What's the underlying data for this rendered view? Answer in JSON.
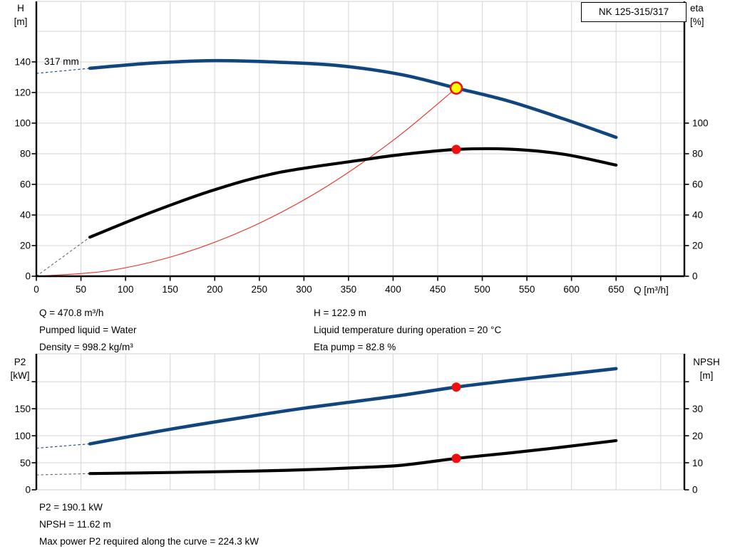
{
  "header": {
    "model": "NK 125-315/317"
  },
  "labels": {
    "impeller": "317 mm",
    "h_axis": {
      "line1": "H",
      "line2": "[m]"
    },
    "eta_axis": {
      "line1": "eta",
      "line2": "[%]"
    },
    "q_axis": "Q [m³/h]",
    "p2_axis": {
      "line1": "P2",
      "line2": "[kW]"
    },
    "npsh_axis": {
      "line1": "NPSH",
      "line2": "[m]"
    }
  },
  "annotations": {
    "duty_left": [
      "Q = 470.8 m³/h",
      "Pumped liquid = Water",
      "Density = 998.2 kg/m³"
    ],
    "duty_right": [
      "H = 122.9 m",
      "Liquid temperature during operation = 20 °C",
      "Eta pump = 82.8 %"
    ],
    "power_block": [
      "P2 = 190.1 kW",
      "NPSH = 11.62 m",
      "Max power P2 required along the curve = 224.3 kW"
    ]
  },
  "colors": {
    "curve_blue": "#10467e",
    "curve_black": "#000000",
    "system_red": "#ee2e24",
    "marker_red": "#f10e0e",
    "marker_yellow": "#ffff00",
    "grid": "#d9d9d9",
    "axis": "#000000",
    "dash_gray": "#666666"
  },
  "chart_data": [
    {
      "type": "line",
      "title": "NK 125-315/317",
      "xlabel": "Q [m³/h]",
      "x_range": [
        0,
        726
      ],
      "x_ticks_labeled": [
        0,
        50,
        100,
        150,
        200,
        250,
        300,
        350,
        400,
        450,
        500,
        550,
        600,
        650
      ],
      "x_ticks_unlabeled": [
        700
      ],
      "left_ylabel": "H [m]",
      "left_range": [
        0,
        179.5
      ],
      "left_ticks": [
        0,
        20,
        40,
        60,
        80,
        100,
        120,
        140
      ],
      "left_grid": [
        20,
        40,
        60,
        80,
        100,
        120,
        140,
        160
      ],
      "right_ylabel": "eta [%]",
      "right_range": [
        0,
        179.5
      ],
      "right_ticks": [
        0,
        20,
        40,
        60,
        80,
        100
      ],
      "grid_x": [
        50,
        100,
        150,
        200,
        250,
        300,
        350,
        400,
        450,
        500,
        550,
        600,
        650,
        700
      ],
      "series": [
        {
          "name": "system-curve",
          "axis": "left",
          "role": "system",
          "points": [
            [
              0,
              0
            ],
            [
              80,
              3.55
            ],
            [
              160,
              14.2
            ],
            [
              240,
              31.9
            ],
            [
              320,
              56.7
            ],
            [
              400,
              88.7
            ],
            [
              470.8,
              122.9
            ]
          ]
        },
        {
          "name": "head-curve-317mm",
          "axis": "left",
          "role": "head",
          "dashed_lead": [
            [
              0,
              132.5
            ],
            [
              60,
              135.8
            ]
          ],
          "points": [
            [
              60,
              135.8
            ],
            [
              130,
              139.2
            ],
            [
              200,
              140.8
            ],
            [
              270,
              139.8
            ],
            [
              340,
              137.5
            ],
            [
              410,
              131.6
            ],
            [
              470.8,
              122.9
            ],
            [
              530,
              114.3
            ],
            [
              590,
              103.0
            ],
            [
              650,
              90.7
            ]
          ]
        },
        {
          "name": "efficiency-curve",
          "axis": "right",
          "role": "efficiency",
          "dashed_lead": [
            [
              0,
              0
            ],
            [
              60,
              25.5
            ]
          ],
          "points": [
            [
              60,
              25.5
            ],
            [
              130,
              42
            ],
            [
              200,
              56.5
            ],
            [
              270,
              67.5
            ],
            [
              360,
              75.5
            ],
            [
              410,
              79.5
            ],
            [
              470.8,
              82.8
            ],
            [
              530,
              83.0
            ],
            [
              590,
              79.8
            ],
            [
              650,
              72.6
            ]
          ]
        }
      ],
      "markers": [
        {
          "name": "duty-point-qh-marker",
          "x": 470.8,
          "y": 122.9,
          "axis": "left",
          "style": "yellow"
        },
        {
          "name": "duty-point-eta-marker",
          "x": 470.8,
          "y": 82.8,
          "axis": "right",
          "style": "red"
        }
      ],
      "duty_point": {
        "Q": 470.8,
        "H": 122.9,
        "eta": 82.8
      }
    },
    {
      "type": "line",
      "xlabel": "",
      "x_range": [
        0,
        726
      ],
      "left_ylabel": "P2 [kW]",
      "left_range": [
        0,
        251.7
      ],
      "left_ticks": [
        0,
        50,
        100,
        150
      ],
      "left_ticks_unlabeled": [
        200
      ],
      "left_grid": [
        50,
        100,
        150,
        200
      ],
      "right_ylabel": "NPSH [m]",
      "right_range": [
        0,
        50.3
      ],
      "right_ticks": [
        0,
        10,
        20,
        30
      ],
      "right_ticks_unlabeled": [
        40
      ],
      "grid_x": [
        50,
        100,
        150,
        200,
        250,
        300,
        350,
        400,
        450,
        500,
        550,
        600,
        650,
        700
      ],
      "series": [
        {
          "name": "p2-curve",
          "axis": "left",
          "role": "head",
          "dashed_lead": [
            [
              0,
              77
            ],
            [
              60,
              85
            ]
          ],
          "points": [
            [
              60,
              85
            ],
            [
              150,
              112
            ],
            [
              240,
              136
            ],
            [
              300,
              151
            ],
            [
              360,
              164
            ],
            [
              410,
              175
            ],
            [
              470.8,
              190.1
            ],
            [
              530,
              202
            ],
            [
              590,
              213
            ],
            [
              650,
              224.3
            ]
          ]
        },
        {
          "name": "npsh-curve",
          "axis": "right",
          "role": "efficiency",
          "dashed_lead": [
            [
              0,
              5.5
            ],
            [
              60,
              6.0
            ]
          ],
          "points": [
            [
              60,
              6.0
            ],
            [
              150,
              6.4
            ],
            [
              240,
              6.9
            ],
            [
              300,
              7.4
            ],
            [
              360,
              8.2
            ],
            [
              410,
              9.1
            ],
            [
              470.8,
              11.62
            ],
            [
              530,
              13.6
            ],
            [
              590,
              15.8
            ],
            [
              650,
              18.2
            ]
          ]
        }
      ],
      "markers": [
        {
          "name": "duty-point-p2-marker",
          "x": 470.8,
          "y": 190.1,
          "axis": "left",
          "style": "red"
        },
        {
          "name": "duty-point-npsh-marker",
          "x": 470.8,
          "y": 11.62,
          "axis": "right",
          "style": "red"
        }
      ],
      "duty_point": {
        "Q": 470.8,
        "P2": 190.1,
        "NPSH": 11.62,
        "max_P2": 224.3
      }
    }
  ]
}
